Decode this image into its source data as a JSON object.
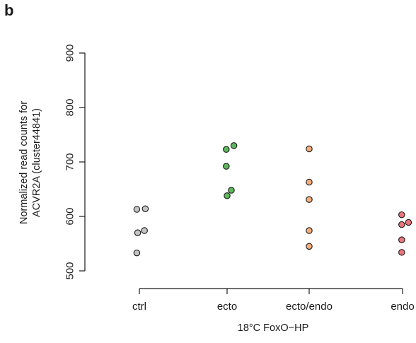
{
  "panel_label": "b",
  "chart_data": {
    "type": "scatter",
    "xlabel": "18°C FoxO−HP",
    "ylabel_lines": [
      "Normalized read counts for",
      "ACVR2A (cluster44841)"
    ],
    "ylim": [
      500,
      900
    ],
    "yticks": [
      500,
      600,
      700,
      800,
      900
    ],
    "categories": [
      "ctrl",
      "ecto",
      "ecto/endo",
      "endo"
    ],
    "grid": false,
    "legend": "none",
    "colors": {
      "ctrl": "#c4c4c4",
      "ecto": "#5cb85c",
      "ecto/endo": "#f6ad7b",
      "endo": "#e9757a"
    },
    "series": [
      {
        "category": "ctrl",
        "points": [
          [
            -0.03,
            613
          ],
          [
            0.07,
            614
          ],
          [
            -0.02,
            570
          ],
          [
            0.06,
            574
          ],
          [
            -0.03,
            533
          ]
        ]
      },
      {
        "category": "ecto",
        "points": [
          [
            -0.01,
            723
          ],
          [
            0.08,
            730
          ],
          [
            -0.01,
            692
          ],
          [
            0.05,
            648
          ],
          [
            0.0,
            638
          ]
        ]
      },
      {
        "category": "ecto/endo",
        "points": [
          [
            0.0,
            724
          ],
          [
            0.0,
            663
          ],
          [
            0.0,
            631
          ],
          [
            0.0,
            574
          ],
          [
            0.0,
            545
          ]
        ]
      },
      {
        "category": "endo",
        "points": [
          [
            -0.01,
            603
          ],
          [
            -0.01,
            585
          ],
          [
            0.07,
            589
          ],
          [
            -0.01,
            557
          ],
          [
            -0.01,
            534
          ]
        ]
      }
    ]
  }
}
